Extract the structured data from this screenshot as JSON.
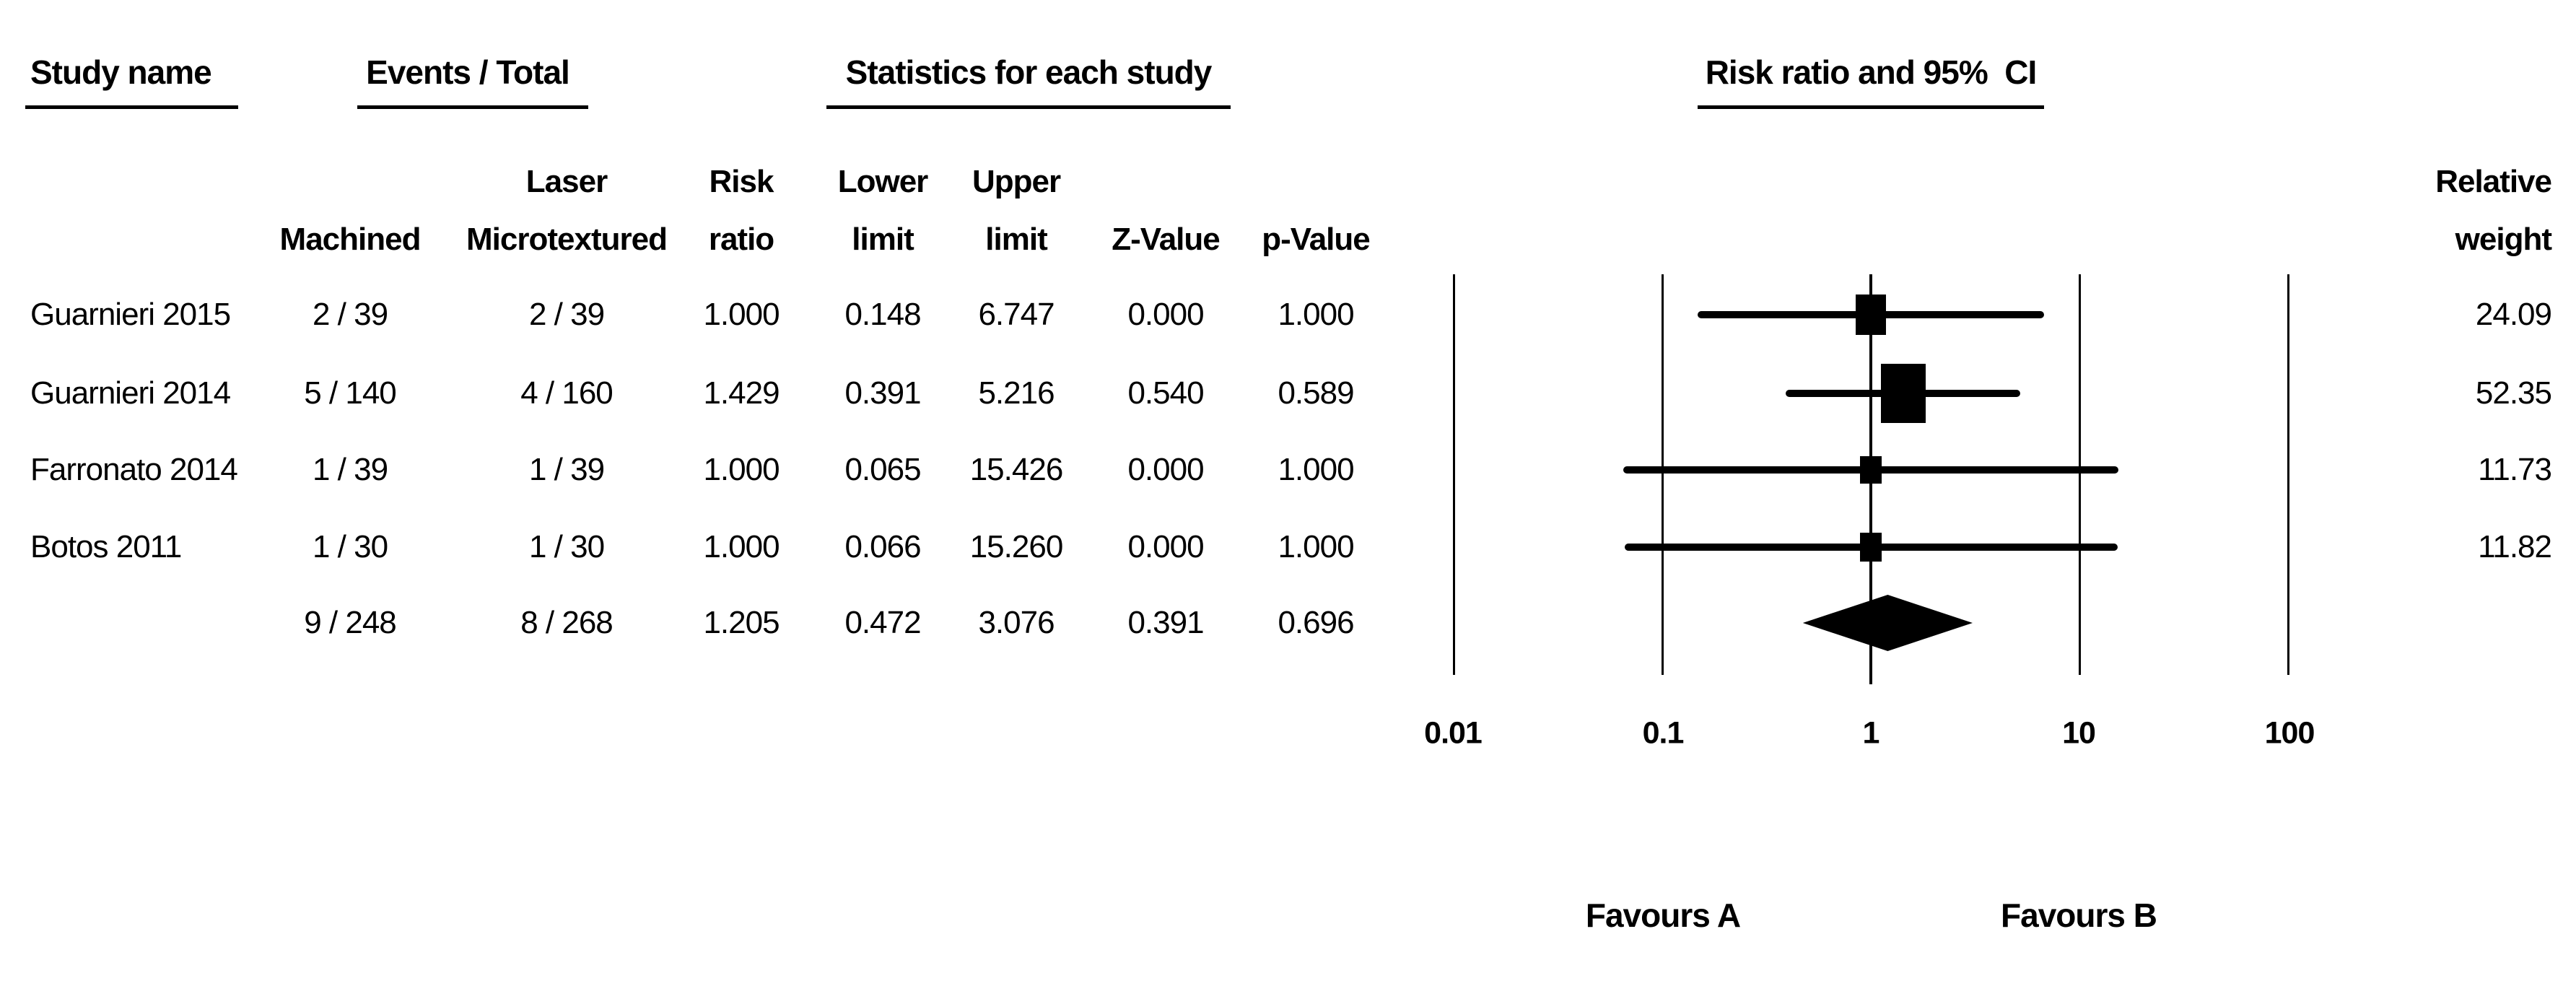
{
  "figure": {
    "background": "#ffffff",
    "text_color": "#000000",
    "marker_color": "#000000"
  },
  "header": {
    "study_name": "Study name",
    "events_total": "Events / Total",
    "statistics": "Statistics for each study",
    "risk_ratio_ci": "Risk ratio and 95%  CI",
    "col_machined": "Machined",
    "col_laser_line1": "Laser",
    "col_laser_line2": "Microtextured",
    "col_risk_line1": "Risk",
    "col_risk_line2": "ratio",
    "col_lower_line1": "Lower",
    "col_lower_line2": "limit",
    "col_upper_line1": "Upper",
    "col_upper_line2": "limit",
    "col_z": "Z-Value",
    "col_p": "p-Value",
    "col_weight_line1": "Relative",
    "col_weight_line2": "weight"
  },
  "rows": [
    {
      "study": "Guarnieri 2015",
      "machined": "2 / 39",
      "laser": "2 / 39",
      "risk_ratio": "1.000",
      "lower": "0.148",
      "upper": "6.747",
      "z": "0.000",
      "p": "1.000",
      "weight": "24.09"
    },
    {
      "study": "Guarnieri 2014",
      "machined": "5 / 140",
      "laser": "4 / 160",
      "risk_ratio": "1.429",
      "lower": "0.391",
      "upper": "5.216",
      "z": "0.540",
      "p": "0.589",
      "weight": "52.35"
    },
    {
      "study": "Farronato 2014",
      "machined": "1 / 39",
      "laser": "1 / 39",
      "risk_ratio": "1.000",
      "lower": "0.065",
      "upper": "15.426",
      "z": "0.000",
      "p": "1.000",
      "weight": "11.73"
    },
    {
      "study": "Botos 2011",
      "machined": "1 / 30",
      "laser": "1 / 30",
      "risk_ratio": "1.000",
      "lower": "0.066",
      "upper": "15.260",
      "z": "0.000",
      "p": "1.000",
      "weight": "11.82"
    },
    {
      "study": "",
      "machined": "9 / 248",
      "laser": "8 / 268",
      "risk_ratio": "1.205",
      "lower": "0.472",
      "upper": "3.076",
      "z": "0.391",
      "p": "0.696",
      "weight": ""
    }
  ],
  "plot": {
    "ticks": [
      {
        "label": "0.01",
        "value": 0.01
      },
      {
        "label": "0.1",
        "value": 0.1
      },
      {
        "label": "1",
        "value": 1
      },
      {
        "label": "10",
        "value": 10
      },
      {
        "label": "100",
        "value": 100
      }
    ],
    "favours_a": "Favours A",
    "favours_b": "Favours B"
  },
  "chart_data": {
    "type": "scatter",
    "variant": "forest_plot",
    "title": "Risk ratio and 95% CI",
    "effect_measure": "Risk ratio",
    "x_scale": "log10",
    "xlim": [
      0.01,
      100
    ],
    "x_ticks": [
      0.01,
      0.1,
      1,
      10,
      100
    ],
    "x_axis_labels": [
      "0.01",
      "0.1",
      "1",
      "10",
      "100"
    ],
    "grid": true,
    "studies": [
      {
        "name": "Guarnieri 2015",
        "events_machined": "2 / 39",
        "events_laser_microtextured": "2 / 39",
        "risk_ratio": 1.0,
        "lower": 0.148,
        "upper": 6.747,
        "z_value": 0.0,
        "p_value": 1.0,
        "relative_weight": 24.09
      },
      {
        "name": "Guarnieri 2014",
        "events_machined": "5 / 140",
        "events_laser_microtextured": "4 / 160",
        "risk_ratio": 1.429,
        "lower": 0.391,
        "upper": 5.216,
        "z_value": 0.54,
        "p_value": 0.589,
        "relative_weight": 52.35
      },
      {
        "name": "Farronato 2014",
        "events_machined": "1 / 39",
        "events_laser_microtextured": "1 / 39",
        "risk_ratio": 1.0,
        "lower": 0.065,
        "upper": 15.426,
        "z_value": 0.0,
        "p_value": 1.0,
        "relative_weight": 11.73
      },
      {
        "name": "Botos 2011",
        "events_machined": "1 / 30",
        "events_laser_microtextured": "1 / 30",
        "risk_ratio": 1.0,
        "lower": 0.066,
        "upper": 15.26,
        "z_value": 0.0,
        "p_value": 1.0,
        "relative_weight": 11.82
      }
    ],
    "summary": {
      "events_machined": "9 / 248",
      "events_laser_microtextured": "8 / 268",
      "risk_ratio": 1.205,
      "lower": 0.472,
      "upper": 3.076,
      "z_value": 0.391,
      "p_value": 0.696
    },
    "favours": {
      "left": "Favours A",
      "right": "Favours B"
    },
    "legend_position": "none"
  }
}
